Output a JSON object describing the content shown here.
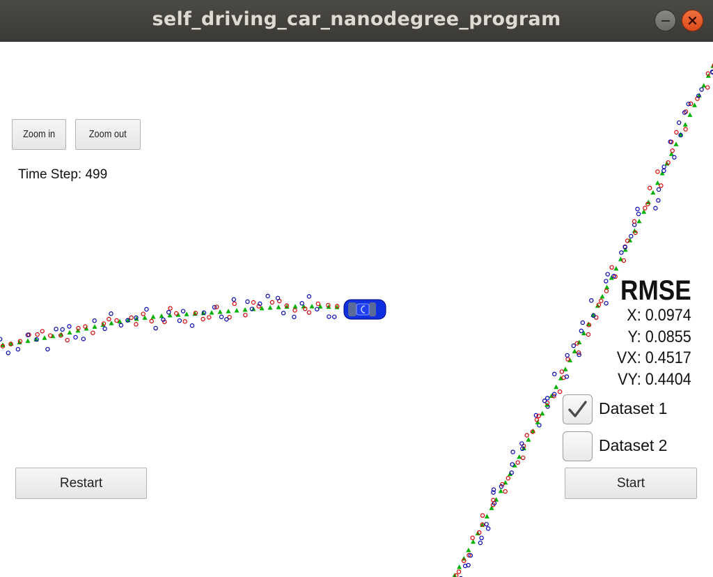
{
  "window": {
    "title": "self_driving_car_nanodegree_program"
  },
  "controls": {
    "zoom_in_label": "Zoom in",
    "zoom_out_label": "Zoom out",
    "restart_label": "Restart",
    "start_label": "Start"
  },
  "status": {
    "time_step": "Time Step: 499"
  },
  "rmse": {
    "title": "RMSE",
    "x": "X: 0.0974",
    "y": "Y: 0.0855",
    "vx": "VX: 0.4517",
    "vy": "VY: 0.4404"
  },
  "datasets": [
    {
      "label": "Dataset 1",
      "checked": true
    },
    {
      "label": "Dataset 2",
      "checked": false
    }
  ],
  "legend_colors": {
    "lidar": "#d40000",
    "radar": "#0000b0",
    "estimate": "#00b000",
    "car": "#1030e0"
  }
}
